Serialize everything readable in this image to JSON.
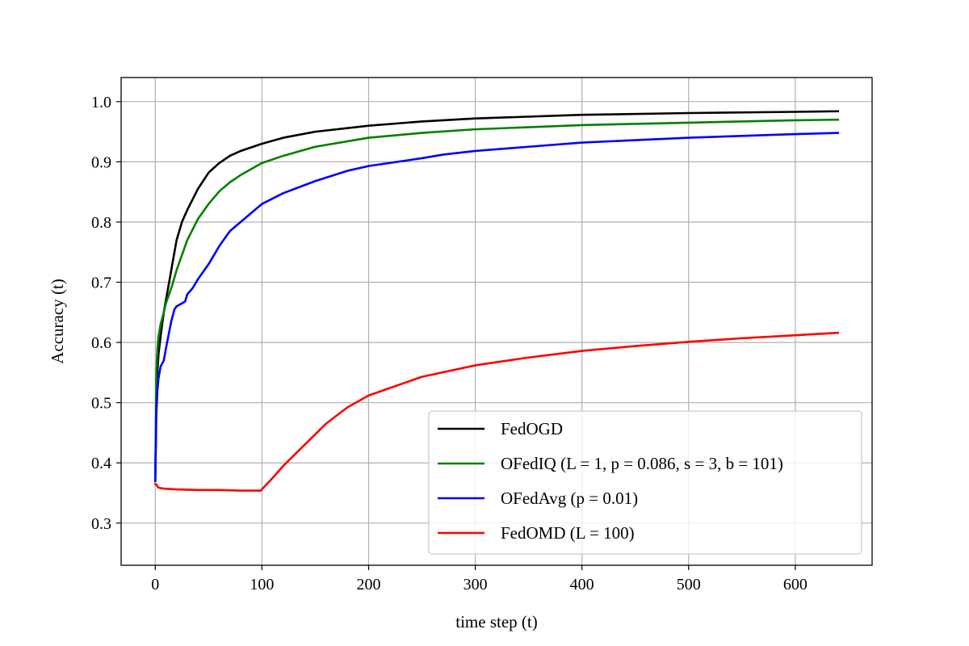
{
  "chart_data": {
    "type": "line",
    "title": "",
    "xlabel": "time step (t)",
    "ylabel": "Accuracy (t)",
    "xlim": [
      -32,
      672
    ],
    "ylim": [
      0.23,
      1.04
    ],
    "xticks": [
      0,
      100,
      200,
      300,
      400,
      500,
      600
    ],
    "yticks": [
      0.3,
      0.4,
      0.5,
      0.6,
      0.7,
      0.8,
      0.9,
      1.0
    ],
    "xtick_labels": [
      "0",
      "100",
      "200",
      "300",
      "400",
      "500",
      "600"
    ],
    "ytick_labels": [
      "0.3",
      "0.4",
      "0.5",
      "0.6",
      "0.7",
      "0.8",
      "0.9",
      "1.0"
    ],
    "grid": true,
    "legend_position": "lower-right",
    "series": [
      {
        "name": "FedOGD",
        "color": "#000000",
        "x": [
          0,
          1,
          2,
          3,
          5,
          8,
          10,
          15,
          20,
          25,
          30,
          40,
          50,
          60,
          70,
          80,
          100,
          120,
          150,
          200,
          250,
          300,
          400,
          500,
          600,
          640
        ],
        "y": [
          0.37,
          0.5,
          0.55,
          0.58,
          0.61,
          0.65,
          0.67,
          0.72,
          0.77,
          0.8,
          0.82,
          0.855,
          0.882,
          0.898,
          0.91,
          0.918,
          0.93,
          0.94,
          0.95,
          0.96,
          0.967,
          0.972,
          0.978,
          0.981,
          0.983,
          0.984
        ]
      },
      {
        "name": "OFedIQ (L = 1, p = 0.086, s = 3, b = 101)",
        "color": "#008000",
        "x": [
          0,
          1,
          2,
          3,
          5,
          8,
          10,
          15,
          20,
          25,
          30,
          40,
          50,
          60,
          70,
          80,
          100,
          120,
          150,
          200,
          250,
          300,
          400,
          500,
          600,
          640
        ],
        "y": [
          0.37,
          0.55,
          0.59,
          0.61,
          0.63,
          0.65,
          0.665,
          0.69,
          0.72,
          0.745,
          0.77,
          0.805,
          0.83,
          0.851,
          0.866,
          0.878,
          0.898,
          0.91,
          0.925,
          0.94,
          0.948,
          0.954,
          0.961,
          0.965,
          0.969,
          0.97
        ]
      },
      {
        "name": "OFedAvg (p = 0.01)",
        "color": "#0000ff",
        "x": [
          0,
          1,
          2,
          3,
          5,
          8,
          10,
          15,
          18,
          20,
          25,
          28,
          30,
          35,
          40,
          50,
          60,
          70,
          80,
          90,
          100,
          120,
          150,
          180,
          200,
          250,
          270,
          300,
          350,
          400,
          500,
          600,
          640
        ],
        "y": [
          0.37,
          0.48,
          0.52,
          0.54,
          0.56,
          0.57,
          0.59,
          0.635,
          0.655,
          0.66,
          0.665,
          0.668,
          0.68,
          0.69,
          0.705,
          0.73,
          0.76,
          0.785,
          0.8,
          0.815,
          0.83,
          0.848,
          0.868,
          0.885,
          0.893,
          0.906,
          0.912,
          0.918,
          0.925,
          0.932,
          0.94,
          0.946,
          0.948
        ]
      },
      {
        "name": "FedOMD (L = 100)",
        "color": "#ff0000",
        "x": [
          0,
          1,
          2,
          3,
          5,
          10,
          20,
          40,
          60,
          80,
          99,
          100,
          110,
          120,
          140,
          160,
          180,
          200,
          250,
          300,
          350,
          400,
          450,
          500,
          550,
          600,
          640
        ],
        "y": [
          0.365,
          0.364,
          0.361,
          0.359,
          0.358,
          0.357,
          0.356,
          0.355,
          0.355,
          0.354,
          0.354,
          0.356,
          0.375,
          0.395,
          0.43,
          0.465,
          0.492,
          0.512,
          0.543,
          0.562,
          0.575,
          0.586,
          0.594,
          0.601,
          0.607,
          0.612,
          0.616
        ]
      }
    ]
  }
}
